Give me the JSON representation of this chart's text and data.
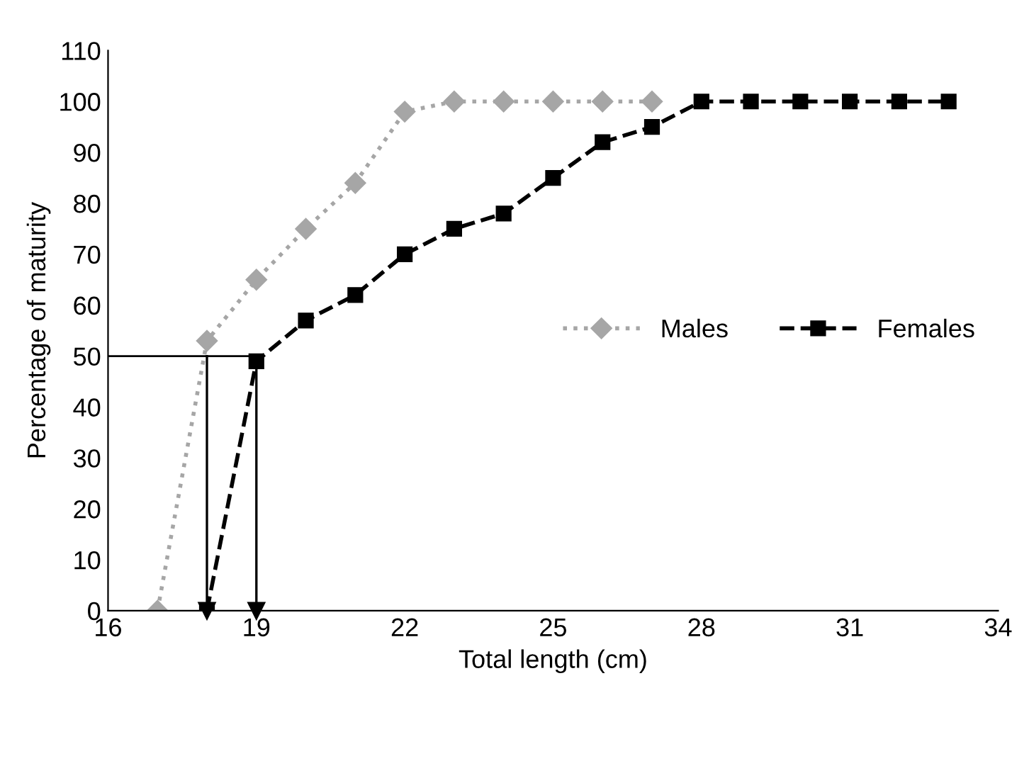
{
  "chart_data": {
    "type": "line",
    "xlabel": "Total length (cm)",
    "ylabel": "Percentage of maturity",
    "series": [
      {
        "name": "Males",
        "color": "#a6a6a6",
        "marker": "diamond",
        "line_style": "dotted",
        "x": [
          17,
          18,
          19,
          20,
          21,
          22,
          23,
          24,
          25,
          26,
          27
        ],
        "values": [
          0,
          53,
          65,
          75,
          84,
          98,
          100,
          100,
          100,
          100,
          100
        ]
      },
      {
        "name": "Females",
        "color": "#000000",
        "marker": "square",
        "line_style": "dashed",
        "x": [
          18,
          19,
          20,
          21,
          22,
          23,
          24,
          25,
          26,
          27,
          28,
          29,
          30,
          31,
          32,
          33
        ],
        "values": [
          0,
          49,
          57,
          62,
          70,
          75,
          78,
          85,
          92,
          95,
          100,
          100,
          100,
          100,
          100,
          100
        ]
      }
    ],
    "ref_lines": [
      {
        "axis": "y",
        "value": 50,
        "color": "#000000"
      },
      {
        "axis": "x",
        "value": 18,
        "color": "#000000"
      },
      {
        "axis": "x",
        "value": 19,
        "color": "#000000"
      }
    ],
    "xlim": [
      16,
      34
    ],
    "xticks": [
      16,
      19,
      22,
      25,
      28,
      31,
      34
    ],
    "ylim": [
      0,
      110
    ],
    "yticks": [
      0,
      10,
      20,
      30,
      40,
      50,
      60,
      70,
      80,
      90,
      100,
      110
    ],
    "grid": false,
    "legend": "center right"
  }
}
